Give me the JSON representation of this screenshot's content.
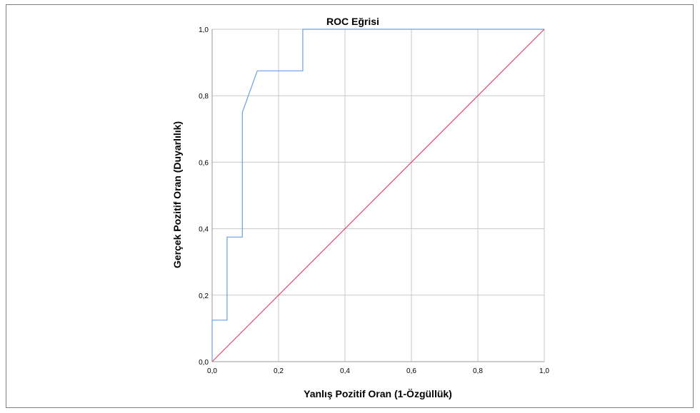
{
  "chart_data": {
    "type": "line",
    "title": "ROC Eğrisi",
    "xlabel": "Yanlış Pozitif Oran (1-Özgüllük)",
    "ylabel": "Gerçek Pozitif Oran (Duyarlılık)",
    "xlim": [
      0,
      1
    ],
    "ylim": [
      0,
      1
    ],
    "x_ticks": [
      "0,0",
      "0,2",
      "0,4",
      "0,6",
      "0,8",
      "1,0"
    ],
    "y_ticks": [
      "0,0",
      "0,2",
      "0,4",
      "0,6",
      "0,8",
      "1,0"
    ],
    "grid": true,
    "series": [
      {
        "color": "#6b9fe0",
        "x": [
          0,
          0,
          0.045,
          0.045,
          0.091,
          0.091,
          0.136,
          0.273,
          0.273,
          1.0
        ],
        "y": [
          0,
          0.125,
          0.125,
          0.375,
          0.375,
          0.75,
          0.875,
          0.875,
          1.0,
          1.0
        ]
      },
      {
        "color": "#e0466a",
        "x": [
          0,
          1
        ],
        "y": [
          0,
          1
        ]
      }
    ]
  }
}
